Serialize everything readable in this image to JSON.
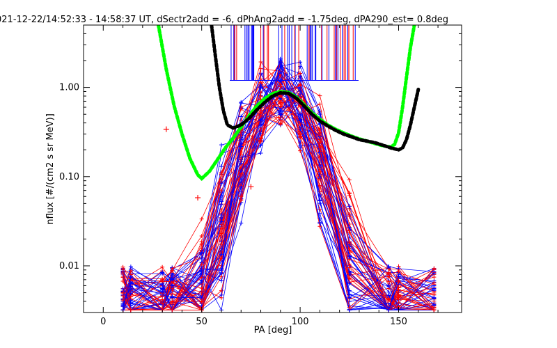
{
  "chart_data": {
    "type": "line",
    "title": "021-12-22/14:52:33 - 14:58:37 UT, dSectr2add = -6, dPhAng2add = -1.75deg, dPA290_est=    0.8deg",
    "xlabel": "PA [deg]",
    "ylabel": "nflux [#/(cm2 s sr MeV)]",
    "xlim": [
      -10,
      182
    ],
    "ylim": [
      0.003,
      5.0
    ],
    "yscale": "log",
    "x_tick_labels": [
      "0",
      "50",
      "100",
      "150"
    ],
    "y_tick_labels": [
      "0.01",
      "0.10",
      "1.00"
    ],
    "colors": {
      "blue": "#0000ff",
      "red": "#ff0000",
      "green": "#00ff00",
      "black": "#000000"
    },
    "series": [
      {
        "color": "green",
        "style": "thick-dotted",
        "x": [
          28,
          32,
          36,
          40,
          44,
          48,
          50,
          54,
          58,
          62,
          66,
          70,
          74,
          78,
          82,
          86,
          90,
          94,
          98,
          102,
          106,
          110,
          114,
          118,
          122,
          126,
          130,
          134,
          138,
          142,
          146,
          148,
          150,
          152,
          154,
          156,
          158
        ],
        "y": [
          5.0,
          1.6,
          0.62,
          0.3,
          0.16,
          0.105,
          0.095,
          0.115,
          0.155,
          0.21,
          0.27,
          0.36,
          0.48,
          0.62,
          0.75,
          0.85,
          0.9,
          0.88,
          0.78,
          0.64,
          0.52,
          0.44,
          0.38,
          0.34,
          0.31,
          0.285,
          0.265,
          0.25,
          0.235,
          0.222,
          0.215,
          0.23,
          0.31,
          0.6,
          1.3,
          2.8,
          5.0
        ]
      },
      {
        "color": "black",
        "style": "thick-dotted",
        "x": [
          55,
          57,
          59,
          61,
          63,
          66,
          70,
          74,
          78,
          82,
          86,
          90,
          94,
          98,
          102,
          106,
          110,
          114,
          118,
          122,
          126,
          130,
          134,
          138,
          142,
          146,
          150,
          152,
          154,
          156,
          158,
          160
        ],
        "y": [
          5.0,
          2.2,
          1.0,
          0.55,
          0.38,
          0.35,
          0.38,
          0.45,
          0.56,
          0.68,
          0.8,
          0.87,
          0.86,
          0.76,
          0.62,
          0.5,
          0.42,
          0.37,
          0.33,
          0.3,
          0.28,
          0.26,
          0.25,
          0.24,
          0.225,
          0.21,
          0.2,
          0.21,
          0.26,
          0.38,
          0.6,
          0.95
        ]
      }
    ],
    "scatter_points": {
      "color": "red",
      "marker": "plus",
      "x": [
        32,
        48,
        75
      ],
      "y": [
        0.34,
        0.058,
        0.077
      ]
    },
    "legend": "none",
    "grid": false
  }
}
